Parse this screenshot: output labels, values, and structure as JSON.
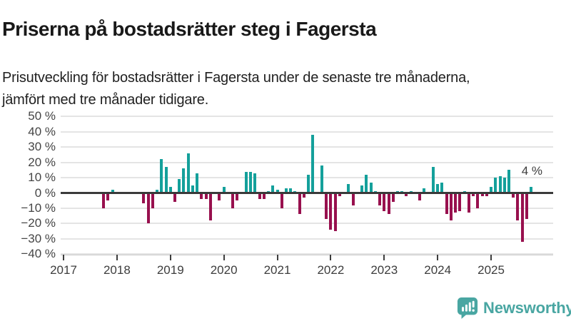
{
  "header": {
    "title": "Priserna på bostadsrätter steg i Fagersta",
    "subtitle": "Prisutveckling för bostadsrätter i Fagersta under de senaste tre månaderna, jämfört med tre månader tidigare."
  },
  "logo": {
    "name": "Newsworthy"
  },
  "colors": {
    "positive": "#14a09b",
    "negative": "#98104e",
    "grid": "#e4e4e4",
    "zero_line": "#3a3a3a",
    "axis_line": "#c9c9c9",
    "tick": "#3d3d3d",
    "axis_text": "#454545",
    "title_text": "#191919",
    "logo": "#49a6a2"
  },
  "chart_data": {
    "type": "bar",
    "title": "Priserna på bostadsrätter steg i Fagersta",
    "subtitle": "Prisutveckling för bostadsrätter i Fagersta under de senaste tre månaderna, jämfört med tre månader tidigare.",
    "unit": "%",
    "grid": true,
    "ylim": [
      -40,
      50
    ],
    "y_ticks": [
      50,
      40,
      30,
      20,
      10,
      0,
      -10,
      -20,
      -30,
      -40
    ],
    "y_tick_labels": [
      "50 %",
      "40 %",
      "30 %",
      "20 %",
      "10 %",
      "0 %",
      "−10 %",
      "−20 %",
      "−30 %",
      "−40 %"
    ],
    "x_ticks": [
      2017,
      2018,
      2019,
      2020,
      2021,
      2022,
      2023,
      2024,
      2025
    ],
    "x_tick_labels": [
      "2017",
      "2018",
      "2019",
      "2020",
      "2021",
      "2022",
      "2023",
      "2024",
      "2025"
    ],
    "annotation": {
      "text": "4 %",
      "attached_to": "2025-10"
    },
    "points": [
      [
        "2017-10",
        -10
      ],
      [
        "2017-11",
        -5
      ],
      [
        "2017-12",
        2
      ],
      [
        "2018-07",
        -7
      ],
      [
        "2018-08",
        -20
      ],
      [
        "2018-09",
        -10
      ],
      [
        "2018-10",
        2
      ],
      [
        "2018-11",
        22
      ],
      [
        "2018-12",
        17
      ],
      [
        "2019-01",
        4
      ],
      [
        "2019-02",
        -6
      ],
      [
        "2019-03",
        9
      ],
      [
        "2019-04",
        16
      ],
      [
        "2019-05",
        26
      ],
      [
        "2019-06",
        5
      ],
      [
        "2019-07",
        13
      ],
      [
        "2019-08",
        -4
      ],
      [
        "2019-09",
        -4
      ],
      [
        "2019-10",
        -18
      ],
      [
        "2019-12",
        -5
      ],
      [
        "2020-01",
        4
      ],
      [
        "2020-03",
        -10
      ],
      [
        "2020-04",
        -5
      ],
      [
        "2020-06",
        14
      ],
      [
        "2020-07",
        14
      ],
      [
        "2020-08",
        13
      ],
      [
        "2020-09",
        -4
      ],
      [
        "2020-10",
        -4
      ],
      [
        "2020-11",
        1
      ],
      [
        "2020-12",
        5
      ],
      [
        "2021-01",
        2
      ],
      [
        "2021-02",
        -10
      ],
      [
        "2021-03",
        3
      ],
      [
        "2021-04",
        3
      ],
      [
        "2021-05",
        1
      ],
      [
        "2021-06",
        -14
      ],
      [
        "2021-07",
        -3
      ],
      [
        "2021-08",
        12
      ],
      [
        "2021-09",
        38
      ],
      [
        "2021-11",
        18
      ],
      [
        "2021-12",
        -17
      ],
      [
        "2022-01",
        -24
      ],
      [
        "2022-02",
        -25
      ],
      [
        "2022-03",
        -2
      ],
      [
        "2022-05",
        6
      ],
      [
        "2022-06",
        -8
      ],
      [
        "2022-08",
        5
      ],
      [
        "2022-09",
        12
      ],
      [
        "2022-10",
        7
      ],
      [
        "2022-11",
        1
      ],
      [
        "2022-12",
        -8
      ],
      [
        "2023-01",
        -12
      ],
      [
        "2023-02",
        -14
      ],
      [
        "2023-03",
        -6
      ],
      [
        "2023-04",
        1
      ],
      [
        "2023-05",
        1
      ],
      [
        "2023-06",
        -2
      ],
      [
        "2023-07",
        1
      ],
      [
        "2023-09",
        -5
      ],
      [
        "2023-10",
        3
      ],
      [
        "2023-12",
        17
      ],
      [
        "2024-01",
        6
      ],
      [
        "2024-02",
        7
      ],
      [
        "2024-03",
        -14
      ],
      [
        "2024-04",
        -18
      ],
      [
        "2024-05",
        -13
      ],
      [
        "2024-06",
        -12
      ],
      [
        "2024-07",
        1
      ],
      [
        "2024-08",
        -13
      ],
      [
        "2024-09",
        -2
      ],
      [
        "2024-10",
        -10
      ],
      [
        "2024-11",
        -2
      ],
      [
        "2024-12",
        -2
      ],
      [
        "2025-01",
        4
      ],
      [
        "2025-02",
        10
      ],
      [
        "2025-03",
        11
      ],
      [
        "2025-04",
        10
      ],
      [
        "2025-05",
        15
      ],
      [
        "2025-06",
        -3
      ],
      [
        "2025-07",
        -18
      ],
      [
        "2025-08",
        -32
      ],
      [
        "2025-09",
        -17
      ],
      [
        "2025-10",
        4
      ]
    ]
  }
}
